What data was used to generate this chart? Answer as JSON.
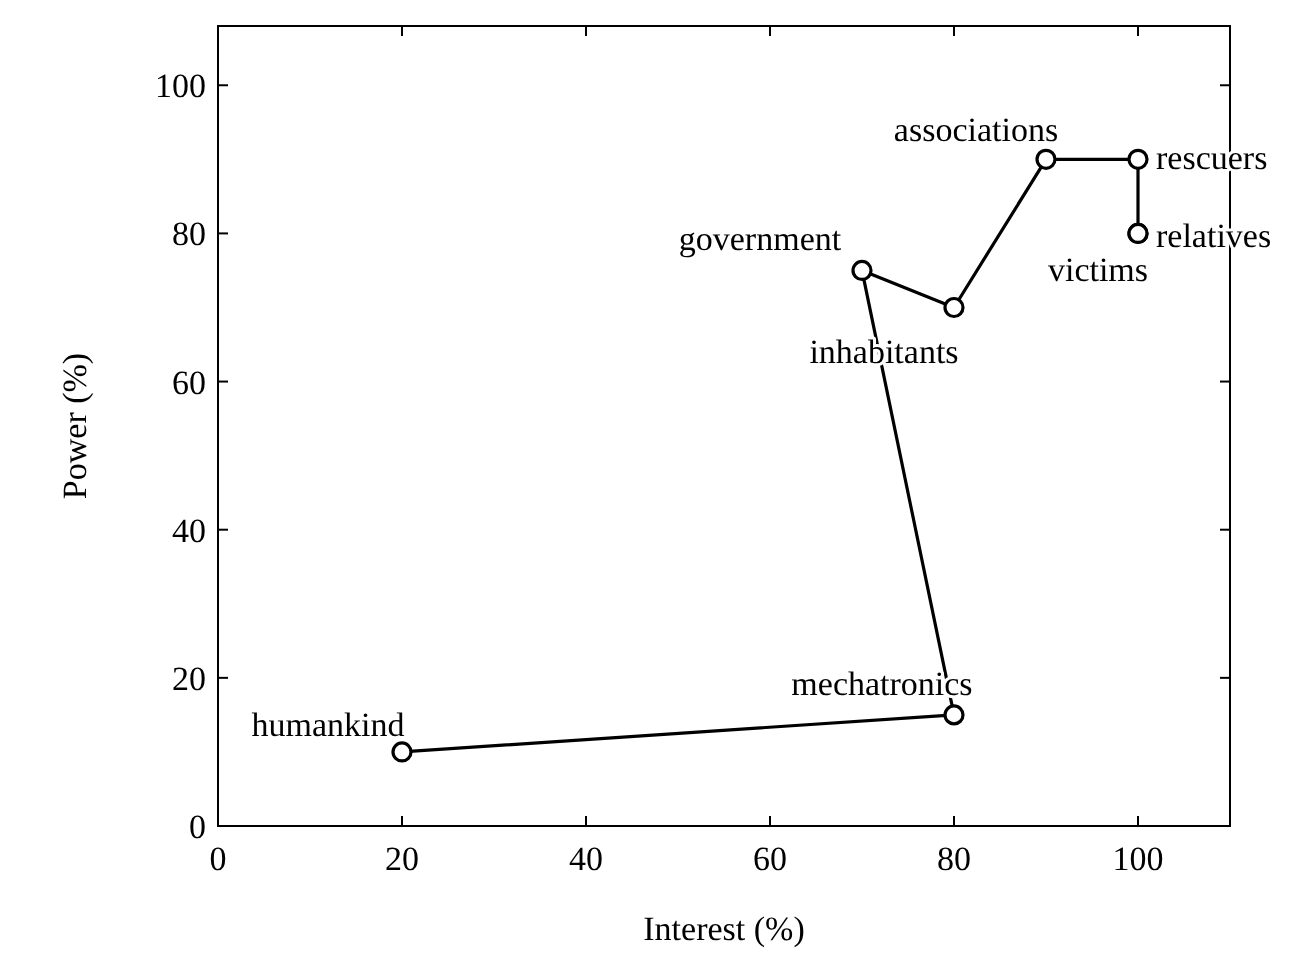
{
  "chart_data": {
    "type": "line",
    "xlabel": "Interest (%)",
    "ylabel": "Power (%)",
    "x": [
      20,
      80,
      70,
      80,
      90,
      100,
      100,
      100
    ],
    "series": [
      {
        "color": "#000000",
        "values": [
          10,
          15,
          75,
          70,
          90,
          90,
          80,
          80
        ]
      }
    ],
    "xlim": [
      0,
      110
    ],
    "xticks": [
      0,
      20,
      40,
      60,
      80,
      100
    ],
    "ylim": [
      0,
      108
    ],
    "yticks": [
      0,
      20,
      40,
      60,
      80,
      100
    ],
    "marker": "circle",
    "line_style": "solid",
    "grid": false,
    "annotations": [
      {
        "text": "humankind",
        "x": 20,
        "y": 10
      },
      {
        "text": "mechatronics",
        "x": 80,
        "y": 15
      },
      {
        "text": "government",
        "x": 70,
        "y": 75
      },
      {
        "text": "inhabitants",
        "x": 80,
        "y": 70
      },
      {
        "text": "associations",
        "x": 90,
        "y": 90
      },
      {
        "text": "rescuers",
        "x": 100,
        "y": 90
      },
      {
        "text": "relatives",
        "x": 100,
        "y": 80
      },
      {
        "text": "victims",
        "x": 100,
        "y": 80
      }
    ]
  }
}
